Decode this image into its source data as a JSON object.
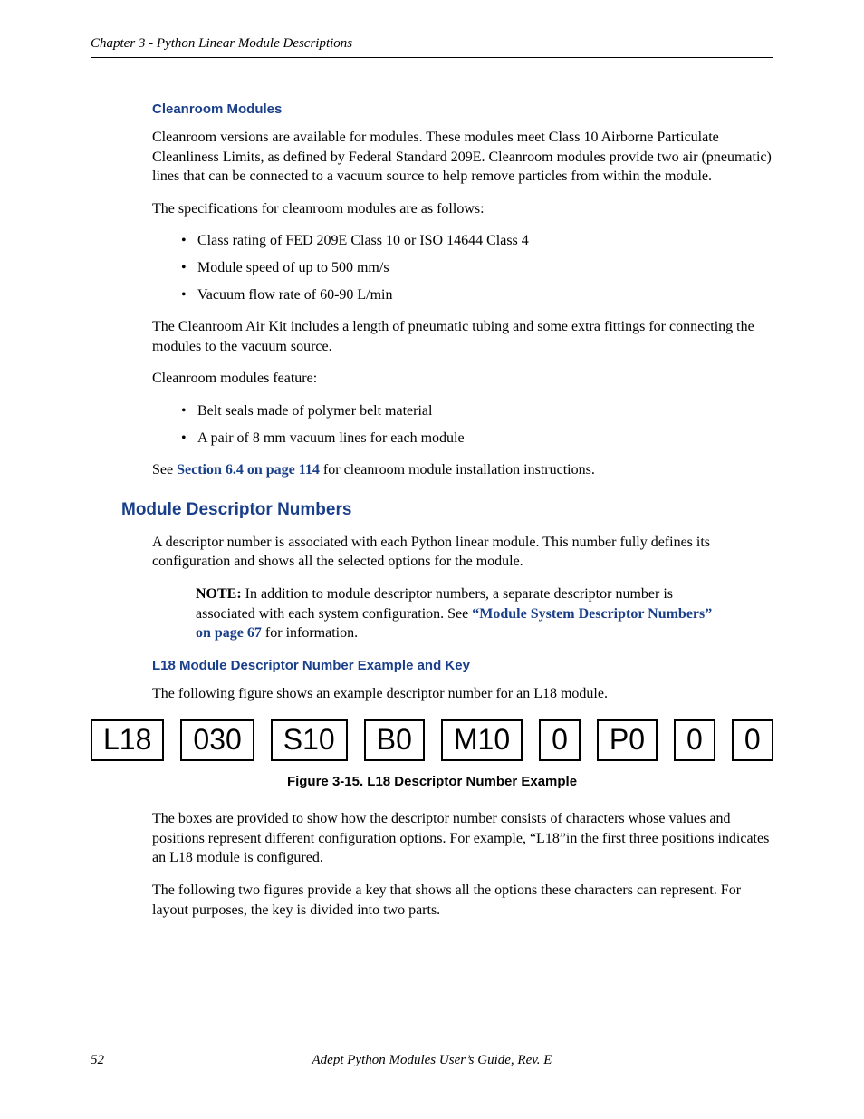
{
  "header": {
    "chapter": "Chapter 3 - Python Linear Module Descriptions"
  },
  "section_cleanroom": {
    "title": "Cleanroom Modules",
    "p1": "Cleanroom versions are available for modules. These modules meet Class 10 Airborne Particulate Cleanliness Limits, as defined by Federal Standard 209E. Cleanroom modules provide two air (pneumatic) lines that can be connected to a vacuum source to help remove particles from within the module.",
    "p2": "The specifications for cleanroom modules are as follows:",
    "specs": [
      "Class rating of FED 209E Class 10 or ISO 14644 Class 4",
      "Module speed of up to 500 mm/s",
      "Vacuum flow rate of 60-90 L/min"
    ],
    "p3": "The Cleanroom Air Kit includes a length of pneumatic tubing and some extra fittings for connecting the modules to the vacuum source.",
    "p4": "Cleanroom modules feature:",
    "features": [
      "Belt seals made of polymer belt material",
      "A pair of 8 mm vacuum lines for each module"
    ],
    "p5_pre": "See ",
    "p5_link": "Section 6.4 on page 114",
    "p5_post": " for cleanroom module installation instructions."
  },
  "section_descriptor": {
    "title": "Module Descriptor Numbers",
    "p1": "A descriptor number is associated with each Python linear module. This number fully defines its configuration and shows all the selected options for the module.",
    "note_label": "NOTE:",
    "note_pre": " In addition to module descriptor numbers, a separate descriptor number is associated with each system configuration. See ",
    "note_link": "“Module System Descriptor Numbers” on page 67",
    "note_post": " for information.",
    "sub_title": "L18 Module Descriptor Number Example and Key",
    "p2": "The following figure shows an example descriptor number for an L18 module.",
    "boxes": [
      "L18",
      "030",
      "S10",
      "B0",
      "M10",
      "0",
      "P0",
      "0",
      "0"
    ],
    "figure_caption": "Figure 3-15. L18 Descriptor Number Example",
    "p3": "The boxes are provided to show how the descriptor number consists of characters whose values and positions represent different configuration options. For example, “L18”in the first three positions indicates an L18 module is configured.",
    "p4": "The following two figures provide a key that shows all the options these characters can represent. For layout purposes, the key is divided into two parts."
  },
  "footer": {
    "page": "52",
    "title": "Adept Python Modules User’s Guide, Rev. E"
  },
  "colors": {
    "link_blue": "#1a3f8a",
    "text": "#000000",
    "background": "#ffffff"
  }
}
